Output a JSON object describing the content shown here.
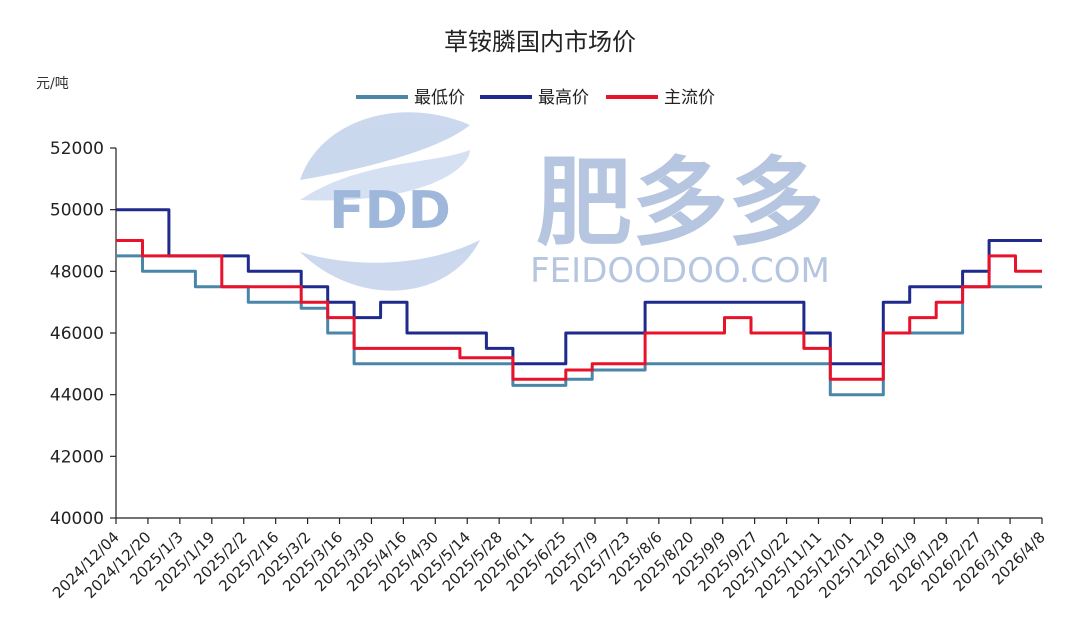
{
  "watermark": {
    "logo_text": "FDD",
    "brand_cn": "肥多多",
    "brand_url": "FEIDOODOO.COM"
  },
  "chart_data": {
    "type": "line",
    "title": "草铵膦国内市场价",
    "ylabel": "元/吨",
    "xlabel": "",
    "ylim": [
      40000,
      52000
    ],
    "yticks": [
      40000,
      42000,
      44000,
      46000,
      48000,
      50000,
      52000
    ],
    "x_tick_labels": [
      "2024/12/04",
      "2024/12/20",
      "2025/1/3",
      "2025/1/19",
      "2025/2/2",
      "2025/2/16",
      "2025/3/2",
      "2025/3/16",
      "2025/3/30",
      "2025/4/16",
      "2025/4/30",
      "2025/5/14",
      "2025/5/28",
      "2025/6/11",
      "2025/6/25",
      "2025/7/9",
      "2025/7/23",
      "2025/8/6",
      "2025/8/20",
      "2025/9/9",
      "2025/9/27",
      "2025/10/22",
      "2025/11/11",
      "2025/12/01",
      "2025/12/19",
      "2026/1/9",
      "2026/1/29",
      "2026/2/27",
      "2026/3/18",
      "2026/4/8"
    ],
    "legend_position": "top-center",
    "grid": false,
    "colors": {
      "最低价": "#4a86a8",
      "最高价": "#1f2a8c",
      "主流价": "#e8122a"
    },
    "series": [
      {
        "name": "最低价",
        "color": "#4a86a8",
        "values": [
          48500,
          48000,
          48000,
          47500,
          47500,
          47000,
          47000,
          46800,
          46000,
          45000,
          45000,
          45000,
          45000,
          45000,
          45000,
          44300,
          44300,
          44500,
          44800,
          44800,
          45000,
          45000,
          45000,
          45000,
          45000,
          45000,
          45000,
          44000,
          44000,
          46000,
          46000,
          46000,
          47500,
          47500,
          47500
        ]
      },
      {
        "name": "最高价",
        "color": "#1f2a8c",
        "values": [
          50000,
          50000,
          48500,
          48500,
          48500,
          48000,
          48000,
          47500,
          47000,
          46500,
          47000,
          46000,
          46000,
          46000,
          45500,
          45000,
          45000,
          46000,
          46000,
          46000,
          47000,
          47000,
          47000,
          47000,
          47000,
          47000,
          46000,
          45000,
          45000,
          47000,
          47500,
          47500,
          48000,
          49000,
          49000
        ]
      },
      {
        "name": "主流价",
        "color": "#e8122a",
        "values": [
          49000,
          48500,
          48500,
          48500,
          47500,
          47500,
          47500,
          47000,
          46500,
          45500,
          45500,
          45500,
          45500,
          45200,
          45200,
          44500,
          44500,
          44800,
          45000,
          45000,
          46000,
          46000,
          46000,
          46500,
          46000,
          46000,
          45500,
          44500,
          44500,
          46000,
          46500,
          47000,
          47500,
          48500,
          48000
        ]
      }
    ]
  }
}
